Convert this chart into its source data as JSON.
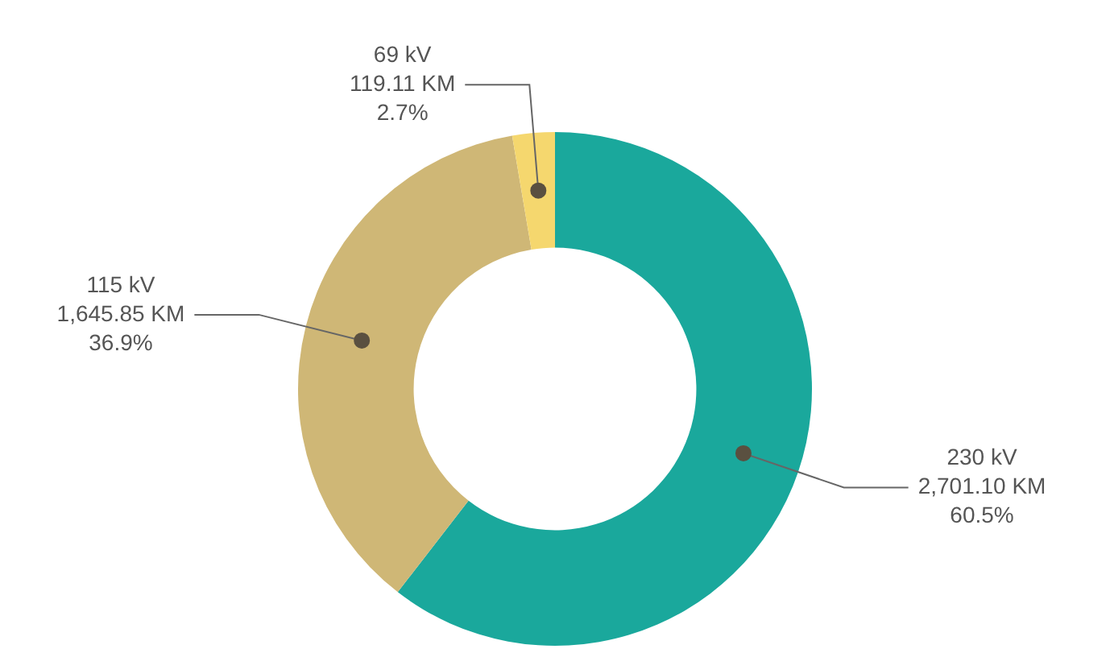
{
  "chart_data": {
    "type": "donut",
    "categories": [
      "230 kV",
      "115 kV",
      "69 kV"
    ],
    "values": [
      2701.1,
      1645.85,
      119.11
    ],
    "colors": [
      "#1aa89c",
      "#cfb776",
      "#f5d76e"
    ],
    "value_labels": [
      "2,701.10 KM\n60.5%",
      "1,645.85 KM\n36.9%",
      "119.11 KM\n2.7%"
    ],
    "legend": false
  }
}
